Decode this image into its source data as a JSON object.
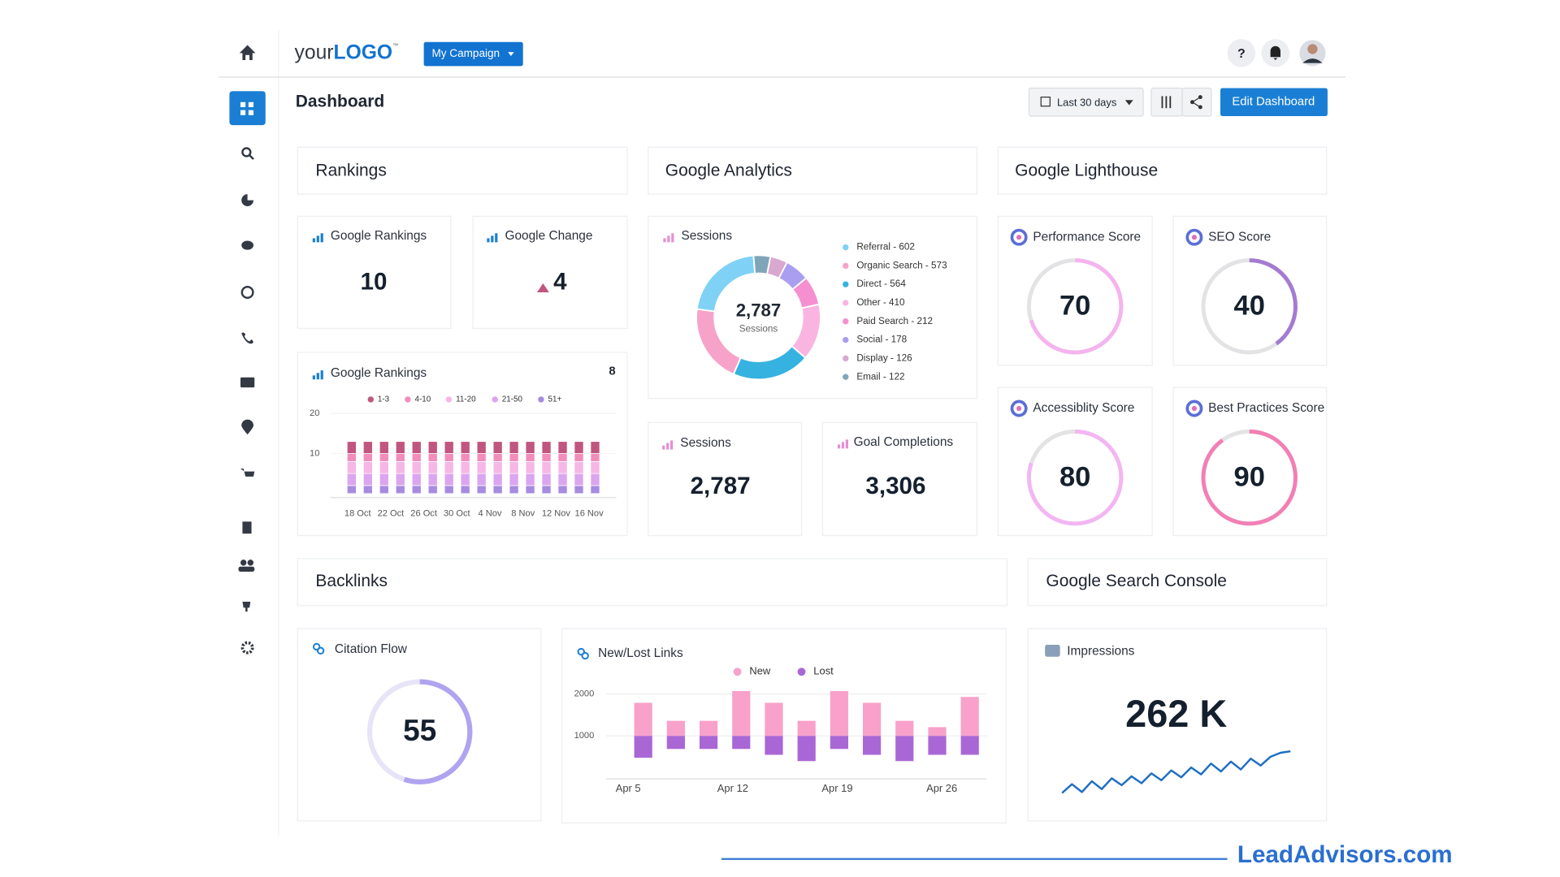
{
  "header": {
    "logo_prefix": "your",
    "logo_main": "LOGO",
    "logo_tm": "™",
    "campaign_button": "My Campaign",
    "help": "?"
  },
  "toolbar": {
    "title": "Dashboard",
    "date_range": "Last 30 days",
    "edit_button": "Edit Dashboard"
  },
  "sections": {
    "rankings": "Rankings",
    "analytics": "Google Analytics",
    "lighthouse": "Google Lighthouse",
    "backlinks": "Backlinks",
    "search_console": "Google Search Console"
  },
  "rankings": {
    "google_rankings": {
      "label": "Google Rankings",
      "value": 10
    },
    "google_change": {
      "label": "Google Change",
      "value": 4,
      "direction": "up"
    }
  },
  "rankings_chart": {
    "type": "bar",
    "stacked": true,
    "title": "Google Rankings",
    "count": 8,
    "x_labels": [
      "18 Oct",
      "22 Oct",
      "26 Oct",
      "30 Oct",
      "4 Nov",
      "8 Nov",
      "12 Nov",
      "16 Nov"
    ],
    "ylim": [
      0,
      20
    ],
    "yticks": [
      10,
      20
    ],
    "series": [
      {
        "name": "1-3",
        "color": "#c0567f",
        "values": [
          3,
          3,
          3,
          3,
          3,
          3,
          3,
          3,
          3,
          3,
          3,
          3,
          3,
          3,
          3,
          3
        ]
      },
      {
        "name": "4-10",
        "color": "#f28dbb",
        "values": [
          2,
          2,
          2,
          2,
          2,
          2,
          2,
          2,
          2,
          2,
          2,
          2,
          2,
          2,
          2,
          2
        ]
      },
      {
        "name": "11-20",
        "color": "#f6b6e6",
        "values": [
          3,
          3,
          3,
          3,
          3,
          3,
          3,
          3,
          3,
          3,
          3,
          3,
          3,
          3,
          3,
          3
        ]
      },
      {
        "name": "21-50",
        "color": "#dca5ef",
        "values": [
          3,
          3,
          3,
          3,
          3,
          3,
          3,
          3,
          3,
          3,
          3,
          3,
          3,
          3,
          3,
          3
        ]
      },
      {
        "name": "51+",
        "color": "#a68ce0",
        "values": [
          2,
          2,
          2,
          2,
          2,
          2,
          2,
          2,
          2,
          2,
          2,
          2,
          2,
          2,
          2,
          2
        ]
      }
    ]
  },
  "analytics": {
    "sessions_chart": {
      "type": "donut",
      "title": "Sessions",
      "center_value": 2787,
      "center_value_label": "2,787",
      "center_label": "Sessions",
      "categories": [
        "Referral",
        "Organic Search",
        "Direct",
        "Other",
        "Paid Search",
        "Social",
        "Display",
        "Email"
      ],
      "values": [
        602,
        573,
        564,
        410,
        212,
        178,
        126,
        122
      ],
      "legend_labels": [
        "Referral - 602",
        "Organic Search - 573",
        "Direct - 564",
        "Other - 410",
        "Paid Search - 212",
        "Social - 178",
        "Display - 126",
        "Email - 122"
      ],
      "colors": [
        "#7fd2f6",
        "#f7a3c9",
        "#36b2e0",
        "#f9b5df",
        "#f58fd0",
        "#a99ef0",
        "#d8a8d0",
        "#7fa6b8"
      ]
    },
    "sessions": {
      "label": "Sessions",
      "value": 2787,
      "value_label": "2,787"
    },
    "goal_completions": {
      "label": "Goal Completions",
      "value": 3306,
      "value_label": "3,306"
    }
  },
  "lighthouse": {
    "type": "gauge",
    "ylim": [
      0,
      100
    ],
    "scores": [
      {
        "label": "Performance Score",
        "value": 70,
        "color": "#f5b4ee"
      },
      {
        "label": "SEO Score",
        "value": 40,
        "color": "#a47bd1"
      },
      {
        "label": "Accessiblity Score",
        "value": 80,
        "color": "#f3b6f3"
      },
      {
        "label": "Best Practices Score",
        "value": 90,
        "color": "#f27fb5"
      }
    ]
  },
  "backlinks": {
    "citation_flow": {
      "type": "gauge",
      "label": "Citation Flow",
      "value": 55,
      "ylim": [
        0,
        100
      ],
      "color": "#b0a3f0"
    },
    "links_chart": {
      "type": "bar",
      "title": "New/Lost Links",
      "x_labels": [
        "Apr 5",
        "Apr 12",
        "Apr 19",
        "Apr 26"
      ],
      "ylim": [
        0,
        2100
      ],
      "yticks": [
        1000,
        2000
      ],
      "series": [
        {
          "name": "New",
          "color": "#f7a1cb",
          "values": [
            1790,
            1360,
            1360,
            2070,
            1790,
            1360,
            2070,
            1790,
            1360,
            1210,
            1930
          ]
        },
        {
          "name": "Lost",
          "color": "#a967d6",
          "values": [
            480,
            690,
            690,
            690,
            550,
            400,
            690,
            550,
            400,
            550,
            550
          ]
        }
      ]
    }
  },
  "search_console": {
    "impressions": {
      "label": "Impressions",
      "value": 262000,
      "value_label": "262 K",
      "trend_ylim": [
        0,
        100
      ],
      "trend": [
        10,
        28,
        12,
        34,
        18,
        40,
        26,
        44,
        30,
        50,
        36,
        56,
        42,
        62,
        48,
        70,
        54,
        74,
        58,
        80,
        66,
        84,
        92,
        95
      ]
    }
  },
  "watermark": "LeadAdvisors.com"
}
